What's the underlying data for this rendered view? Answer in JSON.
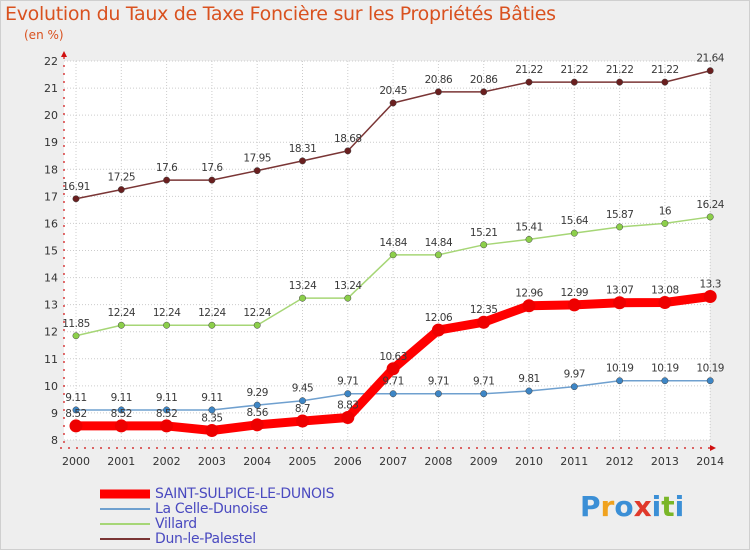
{
  "title": "Evolution du Taux de Taxe Foncière sur les Propriétés Bâties",
  "unit": "(en %)",
  "logo": {
    "letters": [
      "P",
      "r",
      "o",
      "x",
      "i",
      "t",
      "i"
    ],
    "colors": [
      "#3b8fd6",
      "#f0a21e",
      "#3b8fd6",
      "#e0392b",
      "#3b8fd6",
      "#7ab628",
      "#3b8fd6"
    ]
  },
  "chart_data": {
    "type": "line",
    "title": "Evolution du Taux de Taxe Foncière sur les Propriétés Bâties",
    "ylabel": "(en %)",
    "xlabel": "",
    "ylim": [
      8,
      22
    ],
    "yticks": [
      "8",
      "9",
      "10",
      "11",
      "12",
      "13",
      "14",
      "15",
      "16",
      "17",
      "18",
      "19",
      "20",
      "21",
      "22"
    ],
    "categories": [
      "2000",
      "2001",
      "2002",
      "2003",
      "2004",
      "2005",
      "2006",
      "2007",
      "2008",
      "2009",
      "2010",
      "2011",
      "2012",
      "2013",
      "2014"
    ],
    "series": [
      {
        "name": "SAINT-SULPICE-LE-DUNOIS",
        "color": "#ff0000",
        "marker": "#ee0000",
        "width": 9,
        "values": [
          8.52,
          8.52,
          8.52,
          8.35,
          8.56,
          8.7,
          8.83,
          10.63,
          12.06,
          12.35,
          12.96,
          12.99,
          13.07,
          13.08,
          13.3
        ],
        "labels": [
          "8.52",
          "8.52",
          "8.52",
          "8.35",
          "8.56",
          "8.7",
          "8.83",
          "10.63",
          "12.06",
          "12.35",
          "12.96",
          "12.99",
          "13.07",
          "13.08",
          "13.3"
        ]
      },
      {
        "name": "La Celle-Dunoise",
        "color": "#6fa0cf",
        "marker": "#3d86c6",
        "width": 1.5,
        "values": [
          9.11,
          9.11,
          9.11,
          9.11,
          9.29,
          9.45,
          9.71,
          9.71,
          9.71,
          9.71,
          9.81,
          9.97,
          10.19,
          10.19,
          10.19
        ],
        "labels": [
          "9.11",
          "9.11",
          "9.11",
          "9.11",
          "9.29",
          "9.45",
          "9.71",
          "9.71",
          "9.71",
          "9.71",
          "9.81",
          "9.97",
          "10.19",
          "10.19",
          "10.19"
        ]
      },
      {
        "name": "Villard",
        "color": "#a6d676",
        "marker": "#8ccf4a",
        "width": 1.5,
        "values": [
          11.85,
          12.24,
          12.24,
          12.24,
          12.24,
          13.24,
          13.24,
          14.84,
          14.84,
          15.21,
          15.41,
          15.64,
          15.87,
          16.0,
          16.24
        ],
        "labels": [
          "11.85",
          "12.24",
          "12.24",
          "12.24",
          "12.24",
          "13.24",
          "13.24",
          "14.84",
          "14.84",
          "15.21",
          "15.41",
          "15.64",
          "15.87",
          "16",
          "16.24"
        ]
      },
      {
        "name": "Dun-le-Palestel",
        "color": "#7a3535",
        "marker": "#6a1f1f",
        "width": 1.5,
        "values": [
          16.91,
          17.25,
          17.6,
          17.6,
          17.95,
          18.31,
          18.68,
          20.45,
          20.86,
          20.86,
          21.22,
          21.22,
          21.22,
          21.22,
          21.64
        ],
        "labels": [
          "16.91",
          "17.25",
          "17.6",
          "17.6",
          "17.95",
          "18.31",
          "18.68",
          "20.45",
          "20.86",
          "20.86",
          "21.22",
          "21.22",
          "21.22",
          "21.22",
          "21.64"
        ]
      }
    ],
    "legend_position": "bottom-left",
    "grid": true
  }
}
